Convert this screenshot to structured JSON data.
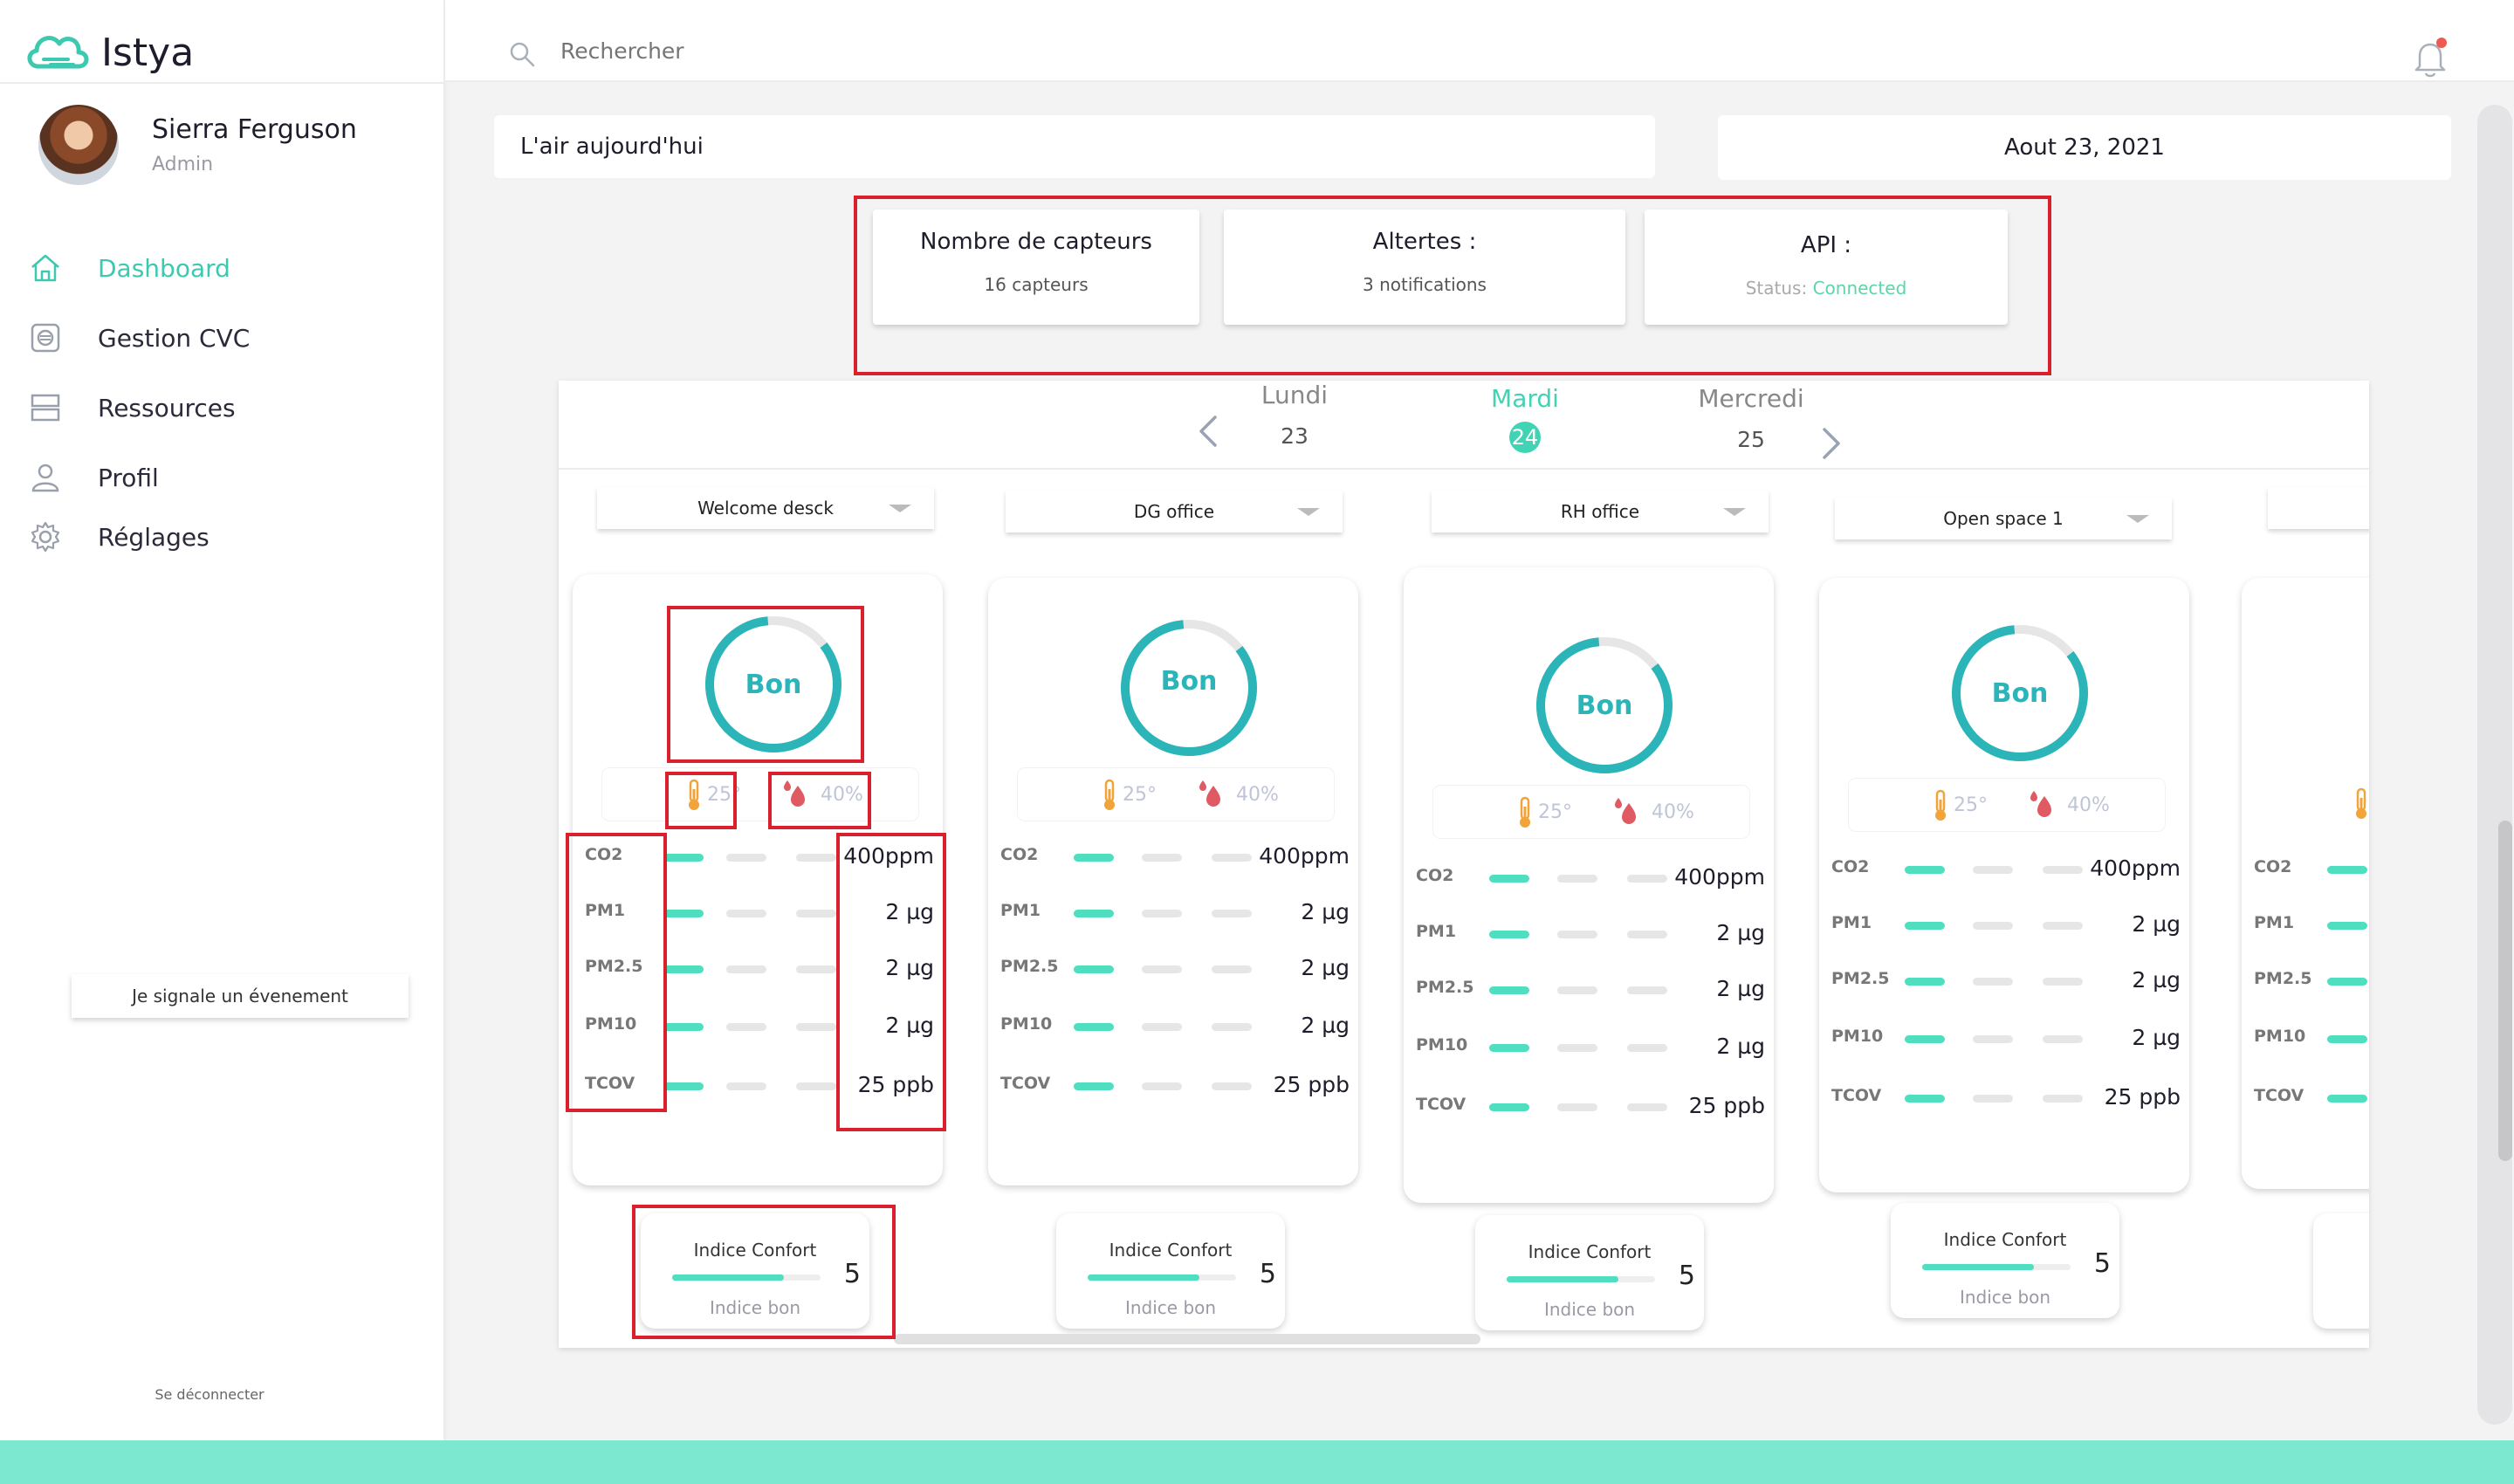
{
  "app": {
    "name": "Istya"
  },
  "user": {
    "name": "Sierra Ferguson",
    "role": "Admin"
  },
  "nav": [
    {
      "label": "Dashboard",
      "icon": "home-icon",
      "active": true
    },
    {
      "label": "Gestion CVC",
      "icon": "hvac-icon"
    },
    {
      "label": "Ressources",
      "icon": "resources-icon"
    },
    {
      "label": "Profil",
      "icon": "user-icon"
    },
    {
      "label": "Réglages",
      "icon": "gear-icon"
    }
  ],
  "report_button": "Je  signale  un évenement",
  "logout": "Se déconnecter",
  "search": {
    "placeholder": "Rechercher"
  },
  "header": {
    "air_title": "L'air aujourd'hui",
    "date": "Aout  23, 2021"
  },
  "stats": {
    "sensors": {
      "title": "Nombre de capteurs",
      "value": "16  capteurs"
    },
    "alerts": {
      "title": "Altertes :",
      "value": "3  notifications"
    },
    "api": {
      "title": "API :",
      "status_label": "Status: ",
      "status_value": "Connected"
    }
  },
  "days": [
    {
      "name": "Lundi",
      "date": "23"
    },
    {
      "name": "Mardi",
      "date": "24",
      "active": true
    },
    {
      "name": "Mercredi",
      "date": "25"
    }
  ],
  "rooms": [
    {
      "name": "Welcome desck",
      "status": "Bon",
      "temp": "25°",
      "humidity": "40%",
      "metrics": [
        {
          "k": "CO2",
          "v": "400ppm"
        },
        {
          "k": "PM1",
          "v": "2 µg"
        },
        {
          "k": "PM2.5",
          "v": "2 µg"
        },
        {
          "k": "PM10",
          "v": "2 µg"
        },
        {
          "k": "TCOV",
          "v": "25 ppb"
        }
      ],
      "comfort": {
        "title": "Indice Confort",
        "score": "5",
        "label": "Indice bon",
        "level": 0.75
      }
    },
    {
      "name": "DG  office",
      "status": "Bon",
      "temp": "25°",
      "humidity": "40%",
      "metrics": [
        {
          "k": "CO2",
          "v": "400ppm"
        },
        {
          "k": "PM1",
          "v": "2 µg"
        },
        {
          "k": "PM2.5",
          "v": "2 µg"
        },
        {
          "k": "PM10",
          "v": "2 µg"
        },
        {
          "k": "TCOV",
          "v": "25 ppb"
        }
      ],
      "comfort": {
        "title": "Indice Confort",
        "score": "5",
        "label": "Indice bon",
        "level": 0.75
      }
    },
    {
      "name": "RH office",
      "status": "Bon",
      "temp": "25°",
      "humidity": "40%",
      "metrics": [
        {
          "k": "CO2",
          "v": "400ppm"
        },
        {
          "k": "PM1",
          "v": "2 µg"
        },
        {
          "k": "PM2.5",
          "v": "2 µg"
        },
        {
          "k": "PM10",
          "v": "2 µg"
        },
        {
          "k": "TCOV",
          "v": "25 ppb"
        }
      ],
      "comfort": {
        "title": "Indice Confort",
        "score": "5",
        "label": "Indice bon",
        "level": 0.75
      }
    },
    {
      "name": "Open space 1",
      "status": "Bon",
      "temp": "25°",
      "humidity": "40%",
      "metrics": [
        {
          "k": "CO2",
          "v": "400ppm"
        },
        {
          "k": "PM1",
          "v": "2 µg"
        },
        {
          "k": "PM2.5",
          "v": "2 µg"
        },
        {
          "k": "PM10",
          "v": "2 µg"
        },
        {
          "k": "TCOV",
          "v": "25 ppb"
        }
      ],
      "comfort": {
        "title": "Indice Confort",
        "score": "5",
        "label": "Indice bon",
        "level": 0.75
      }
    }
  ],
  "partial_room": {
    "metrics": [
      "CO2",
      "PM1",
      "PM2.5",
      "PM10",
      "TCOV"
    ]
  },
  "colors": {
    "accent": "#40d3b4",
    "ring": "#2bb5b9",
    "alert": "#d9202c"
  }
}
